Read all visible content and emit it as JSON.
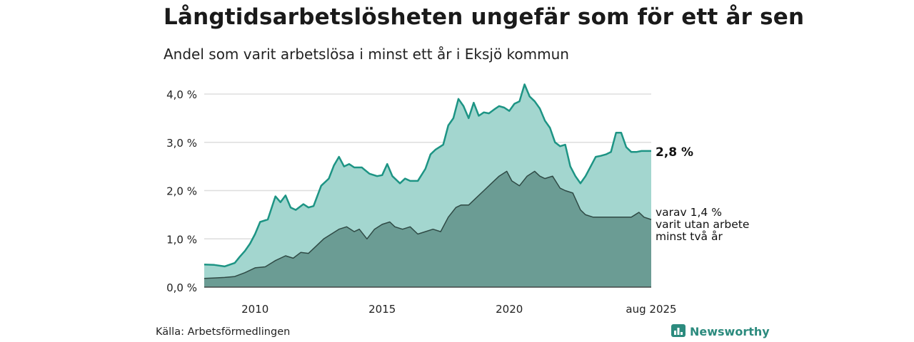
{
  "title": "Långtidsarbetslösheten ungefär som för ett år sen",
  "subtitle": "Andel som varit arbetslösa i minst ett år i Eksjö kommun",
  "source": "Källa: Arbetsförmedlingen",
  "brand": {
    "name": "Newsworthy",
    "icon": "bar-chart-logo-icon"
  },
  "colors": {
    "total_fill": "#a3d6cf",
    "total_line": "#1d9484",
    "long_fill": "#6b9c94",
    "long_line": "#2f4a45",
    "grid": "#dddddd"
  },
  "chart_data": {
    "type": "area",
    "x_unit": "year",
    "xlim": [
      2008.0,
      2025.583
    ],
    "ylim": [
      0,
      4.0
    ],
    "grid": "horizontal",
    "y_ticks": [
      {
        "value": 0,
        "label": "0,0 %"
      },
      {
        "value": 1,
        "label": "1,0 %"
      },
      {
        "value": 2,
        "label": "2,0 %"
      },
      {
        "value": 3,
        "label": "3,0 %"
      },
      {
        "value": 4,
        "label": "4,0 %"
      }
    ],
    "x_ticks": [
      {
        "value": 2010,
        "label": "2010"
      },
      {
        "value": 2015,
        "label": "2015"
      },
      {
        "value": 2020,
        "label": "2020"
      },
      {
        "value": 2025.583,
        "label": "aug 2025"
      }
    ],
    "series": [
      {
        "name": "",
        "end_label": "2,8 %",
        "x": [
          2008.0,
          2008.4,
          2008.8,
          2009.2,
          2009.4,
          2009.6,
          2009.8,
          2010.0,
          2010.2,
          2010.5,
          2010.8,
          2011.0,
          2011.2,
          2011.4,
          2011.6,
          2011.9,
          2012.1,
          2012.3,
          2012.6,
          2012.9,
          2013.1,
          2013.3,
          2013.5,
          2013.7,
          2013.9,
          2014.2,
          2014.5,
          2014.8,
          2015.0,
          2015.2,
          2015.4,
          2015.7,
          2015.9,
          2016.1,
          2016.4,
          2016.7,
          2016.9,
          2017.1,
          2017.4,
          2017.6,
          2017.8,
          2018.0,
          2018.2,
          2018.4,
          2018.6,
          2018.8,
          2019.0,
          2019.2,
          2019.4,
          2019.6,
          2019.8,
          2020.0,
          2020.2,
          2020.4,
          2020.6,
          2020.8,
          2021.0,
          2021.2,
          2021.4,
          2021.6,
          2021.8,
          2022.0,
          2022.2,
          2022.4,
          2022.6,
          2022.8,
          2023.0,
          2023.2,
          2023.4,
          2023.6,
          2023.8,
          2024.0,
          2024.2,
          2024.4,
          2024.6,
          2024.8,
          2025.0,
          2025.2,
          2025.4,
          2025.583
        ],
        "values": [
          0.47,
          0.46,
          0.43,
          0.5,
          0.63,
          0.75,
          0.9,
          1.1,
          1.35,
          1.4,
          1.88,
          1.76,
          1.9,
          1.65,
          1.6,
          1.72,
          1.65,
          1.68,
          2.1,
          2.25,
          2.52,
          2.7,
          2.5,
          2.55,
          2.48,
          2.48,
          2.35,
          2.3,
          2.32,
          2.55,
          2.3,
          2.15,
          2.25,
          2.2,
          2.2,
          2.45,
          2.75,
          2.85,
          2.95,
          3.35,
          3.5,
          3.9,
          3.75,
          3.5,
          3.82,
          3.55,
          3.62,
          3.6,
          3.68,
          3.75,
          3.72,
          3.65,
          3.8,
          3.85,
          4.2,
          3.95,
          3.85,
          3.7,
          3.45,
          3.3,
          3.0,
          2.92,
          2.95,
          2.5,
          2.3,
          2.15,
          2.3,
          2.5,
          2.7,
          2.72,
          2.75,
          2.8,
          3.2,
          3.2,
          2.9,
          2.8,
          2.8,
          2.82,
          2.82,
          2.82
        ]
      },
      {
        "name": "",
        "end_label": [
          "varav 1,4 %",
          "varit utan arbete",
          "minst två år"
        ],
        "x": [
          2008.0,
          2008.4,
          2008.8,
          2009.2,
          2009.6,
          2010.0,
          2010.4,
          2010.8,
          2011.2,
          2011.5,
          2011.8,
          2012.1,
          2012.4,
          2012.7,
          2013.0,
          2013.3,
          2013.6,
          2013.9,
          2014.1,
          2014.4,
          2014.7,
          2015.0,
          2015.3,
          2015.5,
          2015.8,
          2016.1,
          2016.4,
          2016.7,
          2017.0,
          2017.3,
          2017.6,
          2017.9,
          2018.1,
          2018.4,
          2018.7,
          2019.0,
          2019.3,
          2019.6,
          2019.9,
          2020.1,
          2020.4,
          2020.7,
          2021.0,
          2021.2,
          2021.4,
          2021.7,
          2022.0,
          2022.2,
          2022.5,
          2022.8,
          2023.0,
          2023.3,
          2023.6,
          2023.9,
          2024.2,
          2024.5,
          2024.8,
          2025.1,
          2025.3,
          2025.583
        ],
        "values": [
          0.18,
          0.19,
          0.2,
          0.22,
          0.3,
          0.4,
          0.42,
          0.55,
          0.65,
          0.6,
          0.72,
          0.7,
          0.85,
          1.0,
          1.1,
          1.2,
          1.25,
          1.15,
          1.2,
          1.0,
          1.2,
          1.3,
          1.35,
          1.25,
          1.2,
          1.25,
          1.1,
          1.15,
          1.2,
          1.15,
          1.45,
          1.65,
          1.7,
          1.7,
          1.85,
          2.0,
          2.15,
          2.3,
          2.4,
          2.2,
          2.1,
          2.3,
          2.4,
          2.3,
          2.25,
          2.3,
          2.05,
          2.0,
          1.95,
          1.6,
          1.5,
          1.45,
          1.45,
          1.45,
          1.45,
          1.45,
          1.45,
          1.55,
          1.45,
          1.4
        ]
      }
    ]
  }
}
